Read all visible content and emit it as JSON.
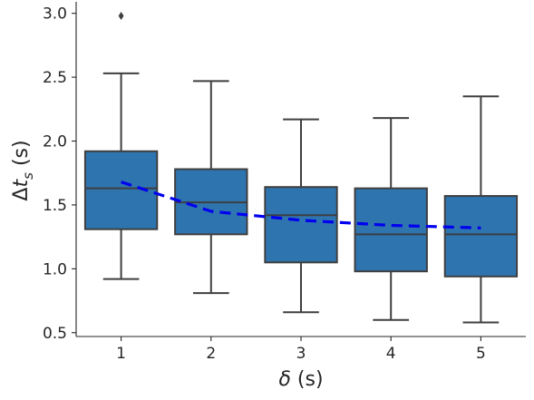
{
  "chart_data": {
    "type": "box",
    "categories": [
      "1",
      "2",
      "3",
      "4",
      "5"
    ],
    "xlabel_parts": {
      "symbol": "δ",
      "unit": " (s)"
    },
    "ylabel_parts": {
      "symbol": "Δ",
      "var": "t",
      "sub": "s",
      "unit": " (s)"
    },
    "ylim": [
      0.47,
      3.09
    ],
    "yticks": [
      "0.5",
      "1.0",
      "1.5",
      "2.0",
      "2.5",
      "3.0"
    ],
    "boxes": [
      {
        "category": "1",
        "whisker_low": 0.92,
        "q1": 1.31,
        "median": 1.63,
        "q3": 1.92,
        "whisker_high": 2.53,
        "outliers": [
          2.98
        ]
      },
      {
        "category": "2",
        "whisker_low": 0.81,
        "q1": 1.27,
        "median": 1.52,
        "q3": 1.78,
        "whisker_high": 2.47,
        "outliers": []
      },
      {
        "category": "3",
        "whisker_low": 0.66,
        "q1": 1.05,
        "median": 1.42,
        "q3": 1.64,
        "whisker_high": 2.17,
        "outliers": []
      },
      {
        "category": "4",
        "whisker_low": 0.6,
        "q1": 0.98,
        "median": 1.27,
        "q3": 1.63,
        "whisker_high": 2.18,
        "outliers": []
      },
      {
        "category": "5",
        "whisker_low": 0.58,
        "q1": 0.94,
        "median": 1.27,
        "q3": 1.57,
        "whisker_high": 2.35,
        "outliers": []
      }
    ],
    "trend_line": {
      "values": [
        1.68,
        1.45,
        1.38,
        1.34,
        1.32
      ],
      "style": "dashed"
    },
    "colors": {
      "box_fill": "#2e75b0",
      "box_edge": "#3f3f3f",
      "trend": "#0000ee"
    },
    "grid": false,
    "legend": "none"
  }
}
